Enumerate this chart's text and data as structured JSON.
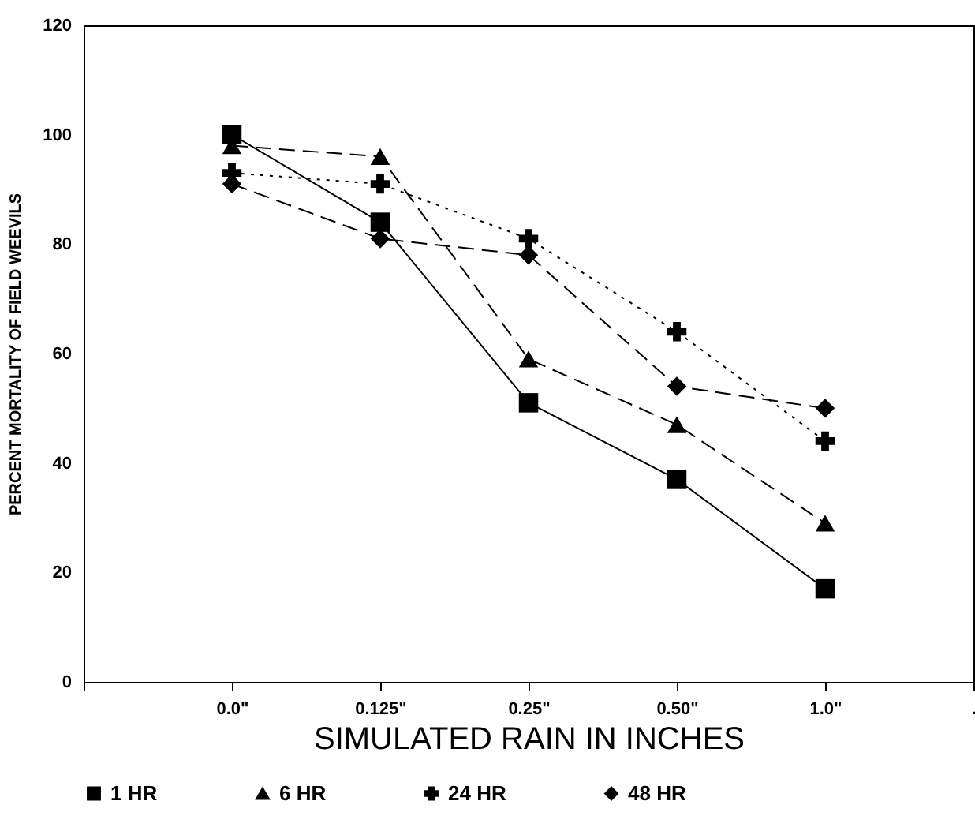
{
  "chart_data": {
    "type": "line",
    "xlabel": "SIMULATED RAIN IN INCHES",
    "ylabel": "PERCENT MORTALITY OF FIELD WEEVILS",
    "categories": [
      null,
      "0.0\"",
      "0.125\"",
      "0.25\"",
      "0.50\"",
      "1.0\"",
      "."
    ],
    "series": [
      {
        "name": "1 HR",
        "color": "#000000",
        "marker": "square",
        "line_style": "solid",
        "values": [
          null,
          100,
          84,
          51,
          37,
          17,
          null
        ]
      },
      {
        "name": "6 HR",
        "color": "#000000",
        "marker": "triangle",
        "line_style": "dashed",
        "values": [
          null,
          98,
          96,
          59,
          47,
          29,
          null
        ]
      },
      {
        "name": "24 HR",
        "color": "#000000",
        "marker": "cross",
        "line_style": "dotted",
        "values": [
          null,
          93,
          91,
          81,
          64,
          44,
          null
        ]
      },
      {
        "name": "48 HR",
        "color": "#000000",
        "marker": "diamond",
        "line_style": "dashed",
        "values": [
          null,
          91,
          81,
          78,
          54,
          50,
          null
        ]
      }
    ],
    "ylim": [
      0,
      120
    ],
    "yticks": [
      0,
      20,
      40,
      60,
      80,
      100,
      120
    ],
    "grid": false,
    "legend": "bottom"
  }
}
